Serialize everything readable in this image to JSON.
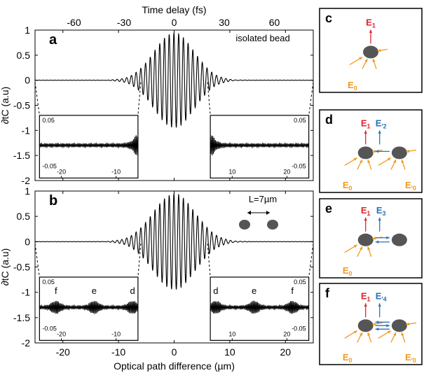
{
  "chart_data": [
    {
      "type": "line",
      "panel_label": "a",
      "annotation": "isolated bead",
      "xlabel": "",
      "ylabel": "∂tC (a.u)",
      "top_xlabel": "Time delay (fs)",
      "top_ticks": [
        "-60",
        "-30",
        "0",
        "30",
        "60"
      ],
      "x_ticks": [
        "-20",
        "-10",
        "0",
        "10",
        "20"
      ],
      "y_ticks": [
        "-2",
        "-1.5",
        "-1",
        "-0.5",
        "0",
        "0.5",
        "1"
      ],
      "xlim": [
        -25,
        25
      ],
      "ylim": [
        -2,
        1
      ],
      "envelope": {
        "center": 0,
        "width": 3.6,
        "period": 0.85,
        "amplitude": 0.95
      },
      "insets": [
        {
          "side": "left",
          "x_ticks": [
            "-20",
            "-10"
          ],
          "y_ticks": [
            "0.05",
            "-0.05"
          ],
          "xrange": [
            -24,
            -6
          ],
          "feature_x": -6.3
        },
        {
          "side": "right",
          "x_ticks": [
            "10",
            "20"
          ],
          "y_ticks": [
            "0.05",
            "-0.05"
          ],
          "xrange": [
            6,
            24
          ],
          "feature_x": 6.3
        }
      ]
    },
    {
      "type": "line",
      "panel_label": "b",
      "annotation": "L=7µm",
      "xlabel": "Optical path difference (µm)",
      "ylabel": "∂tC (a.u)",
      "x_ticks": [
        "-20",
        "-10",
        "0",
        "10",
        "20"
      ],
      "y_ticks": [
        "-2",
        "-1.5",
        "-1",
        "-0.5",
        "0",
        "0.5",
        "1"
      ],
      "xlim": [
        -25,
        25
      ],
      "ylim": [
        -2,
        1
      ],
      "envelope": {
        "center": 0,
        "width": 3.8,
        "period": 0.85,
        "amplitude": 0.95
      },
      "insets": [
        {
          "side": "left",
          "x_ticks": [
            "-20",
            "-10"
          ],
          "y_ticks": [
            "0.05",
            "-0.05"
          ],
          "xrange": [
            -24,
            -6
          ],
          "markers": [
            {
              "label": "f",
              "x": -21
            },
            {
              "label": "e",
              "x": -14
            },
            {
              "label": "d",
              "x": -7
            }
          ]
        },
        {
          "side": "right",
          "x_ticks": [
            "10",
            "20"
          ],
          "y_ticks": [
            "0.05",
            "-0.05"
          ],
          "xrange": [
            6,
            24
          ],
          "markers": [
            {
              "label": "d",
              "x": 7
            },
            {
              "label": "e",
              "x": 14
            },
            {
              "label": "f",
              "x": 21
            }
          ]
        }
      ]
    }
  ],
  "diagrams": [
    {
      "label": "c",
      "top_labels": [
        "E1"
      ],
      "bottom_labels": [
        "E0"
      ],
      "beads": 1,
      "coupling": "none"
    },
    {
      "label": "d",
      "top_labels": [
        "E1",
        "E′2"
      ],
      "bottom_labels": [
        "E0",
        "E′0"
      ],
      "beads": 2,
      "coupling": "left"
    },
    {
      "label": "e",
      "top_labels": [
        "E1",
        "E3"
      ],
      "bottom_labels": [
        "E0"
      ],
      "beads": 2,
      "coupling": "double"
    },
    {
      "label": "f",
      "top_labels": [
        "E1",
        "E′4"
      ],
      "bottom_labels": [
        "E0",
        "E′0"
      ],
      "beads": 2,
      "coupling": "triple"
    }
  ],
  "colors": {
    "red": "#e2232a",
    "blue": "#2b72b8",
    "orange": "#f39a1c",
    "bead": "#555555"
  }
}
